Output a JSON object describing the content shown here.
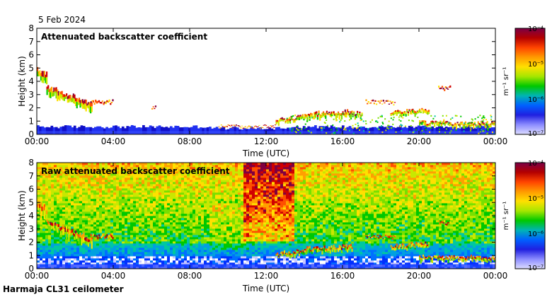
{
  "date_label": "5 Feb 2024",
  "footer_label": "Harmaja CL31 ceilometer",
  "colors": {
    "frame": "#000000",
    "background": "#ffffff"
  },
  "colorbar": {
    "unit_label": "m⁻¹ sr⁻¹",
    "tick_labels": [
      "10⁻⁴",
      "10⁻⁵",
      "10⁻⁶",
      "10⁻⁷"
    ],
    "gradient": [
      "#7a0046",
      "#b40000",
      "#ff4400",
      "#ff9a00",
      "#ffe000",
      "#a6e600",
      "#00c800",
      "#00b4b4",
      "#0060ff",
      "#2020e0",
      "#8c8cff",
      "#dcdcff"
    ]
  },
  "chart_data": [
    {
      "type": "heatmap",
      "title": "Attenuated backscatter coefficient",
      "xlabel": "Time (UTC)",
      "ylabel": "Height (km)",
      "xlim": [
        0,
        24
      ],
      "ylim": [
        0,
        8
      ],
      "x_ticks": [
        "00:00",
        "04:00",
        "08:00",
        "12:00",
        "16:00",
        "20:00",
        "00:00"
      ],
      "y_ticks": [
        "0",
        "1",
        "2",
        "3",
        "4",
        "5",
        "6",
        "7",
        "8"
      ],
      "color_scale": {
        "min": 1e-07,
        "max": 0.0001,
        "scale": "log",
        "unit": "m-1 sr-1"
      },
      "features": [
        {
          "name": "boundary layer",
          "t_start": 0,
          "t_end": 24,
          "height_km": [
            0,
            0.7
          ]
        },
        {
          "name": "descending cloud layer",
          "t_start": 0,
          "t_end": 3.0,
          "height_km": [
            4.7,
            2.0
          ]
        },
        {
          "name": "cloud layer",
          "t_start": 2.8,
          "t_end": 4.0,
          "height_km": [
            2.4,
            2.4
          ]
        },
        {
          "name": "low cloud",
          "t_start": 12.5,
          "t_end": 24,
          "height_km": [
            0.8,
            1.8
          ]
        },
        {
          "name": "cloud",
          "t_start": 17.2,
          "t_end": 18.7,
          "height_km": [
            2.4,
            2.4
          ]
        },
        {
          "name": "cloud",
          "t_start": 21.0,
          "t_end": 21.6,
          "height_km": [
            3.4,
            3.4
          ]
        }
      ]
    },
    {
      "type": "heatmap",
      "title": "Raw attenuated backscatter coefficient",
      "xlabel": "Time (UTC)",
      "ylabel": "Height (km)",
      "xlim": [
        0,
        24
      ],
      "ylim": [
        0,
        8
      ],
      "x_ticks": [
        "00:00",
        "04:00",
        "08:00",
        "12:00",
        "16:00",
        "20:00",
        "00:00"
      ],
      "y_ticks": [
        "0",
        "1",
        "2",
        "3",
        "4",
        "5",
        "6",
        "7",
        "8"
      ],
      "color_scale": {
        "min": 1e-07,
        "max": 0.0001,
        "scale": "log",
        "unit": "m-1 sr-1"
      },
      "features": [
        {
          "name": "noise field",
          "t_start": 0,
          "t_end": 24,
          "height_km": [
            1.0,
            8.0
          ]
        },
        {
          "name": "high noise column",
          "t_start": 11.0,
          "t_end": 13.5,
          "height_km": [
            2.0,
            8.0
          ]
        },
        {
          "name": "descending cloud layer",
          "t_start": 0,
          "t_end": 3.0,
          "height_km": [
            4.7,
            2.0
          ]
        },
        {
          "name": "low cloud",
          "t_start": 12.5,
          "t_end": 24,
          "height_km": [
            0.8,
            1.8
          ]
        }
      ]
    }
  ]
}
